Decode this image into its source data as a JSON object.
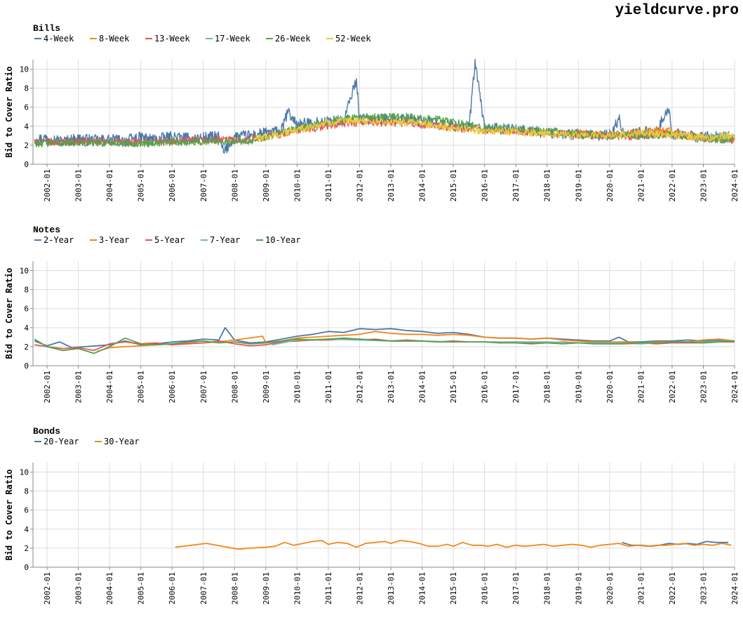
{
  "brand": "yieldcurve.pro",
  "chart_data": [
    {
      "type": "line",
      "title": "Bills",
      "ylabel": "Bid to Cover Ratio",
      "ylim": [
        0,
        11
      ],
      "yticks": [
        0,
        2,
        4,
        6,
        8,
        10
      ],
      "xlim": [
        2001.55,
        2024.0
      ],
      "xticks": [
        "2002-01",
        "2003-01",
        "2004-01",
        "2005-01",
        "2006-01",
        "2007-01",
        "2008-01",
        "2009-01",
        "2010-01",
        "2011-01",
        "2012-01",
        "2013-01",
        "2014-01",
        "2015-01",
        "2016-01",
        "2017-01",
        "2018-01",
        "2019-01",
        "2020-01",
        "2021-01",
        "2022-01",
        "2023-01",
        "2024-01"
      ],
      "grid": true,
      "legend_position": "top-left",
      "series": [
        {
          "name": "4-Week",
          "color": "#4c78a8",
          "start": 2001.6,
          "end": 2024.0,
          "x": [
            2001.6,
            2002.0,
            2002.5,
            2003.0,
            2003.5,
            2004.0,
            2004.5,
            2005.0,
            2005.5,
            2006.0,
            2006.5,
            2007.0,
            2007.5,
            2007.65,
            2008.0,
            2008.5,
            2009.0,
            2009.5,
            2009.7,
            2010.0,
            2010.5,
            2011.0,
            2011.5,
            2011.9,
            2012.0,
            2012.5,
            2013.0,
            2013.5,
            2014.0,
            2014.5,
            2015.0,
            2015.5,
            2015.7,
            2016.0,
            2016.5,
            2017.0,
            2017.5,
            2018.0,
            2018.5,
            2019.0,
            2019.5,
            2020.0,
            2020.3,
            2020.5,
            2021.0,
            2021.5,
            2021.9,
            2022.0,
            2022.5,
            2023.0,
            2023.5,
            2024.0
          ],
          "values": [
            2.6,
            2.8,
            2.4,
            2.7,
            2.5,
            2.6,
            2.5,
            2.8,
            2.6,
            2.9,
            2.7,
            2.8,
            2.9,
            1.2,
            2.9,
            3.0,
            3.3,
            3.5,
            5.5,
            4.2,
            4.3,
            4.5,
            4.6,
            9.0,
            4.7,
            4.8,
            4.6,
            4.8,
            4.6,
            4.2,
            4.0,
            3.8,
            10.7,
            3.8,
            3.7,
            3.6,
            3.5,
            3.3,
            3.2,
            3.1,
            3.0,
            3.1,
            4.7,
            3.1,
            3.3,
            3.5,
            5.8,
            3.2,
            3.0,
            2.8,
            2.9,
            2.8
          ]
        },
        {
          "name": "8-Week",
          "color": "#f58518",
          "start": 2018.75,
          "end": 2024.0,
          "x": [
            2018.75,
            2019.0,
            2019.5,
            2020.0,
            2020.5,
            2021.0,
            2021.5,
            2022.0,
            2022.5,
            2023.0,
            2023.5,
            2024.0
          ],
          "values": [
            3.2,
            3.3,
            3.1,
            3.0,
            3.2,
            3.4,
            3.6,
            3.5,
            3.0,
            2.7,
            2.8,
            2.7
          ]
        },
        {
          "name": "13-Week",
          "color": "#e45756",
          "start": 2001.6,
          "end": 2024.0,
          "x": [
            2001.6,
            2003.0,
            2005.0,
            2007.0,
            2008.5,
            2010.0,
            2011.5,
            2013.0,
            2014.5,
            2016.0,
            2017.5,
            2019.0,
            2020.5,
            2022.0,
            2023.5,
            2024.0
          ],
          "values": [
            2.3,
            2.4,
            2.3,
            2.5,
            2.6,
            3.5,
            4.3,
            4.4,
            4.0,
            3.6,
            3.4,
            3.1,
            2.9,
            3.2,
            2.6,
            2.6
          ]
        },
        {
          "name": "17-Week",
          "color": "#72b7b2",
          "start": 2022.8,
          "end": 2024.0,
          "x": [
            2022.8,
            2023.2,
            2023.6,
            2024.0
          ],
          "values": [
            2.8,
            2.9,
            3.0,
            3.0
          ]
        },
        {
          "name": "26-Week",
          "color": "#54a24b",
          "start": 2001.6,
          "end": 2024.0,
          "x": [
            2001.6,
            2003.0,
            2005.0,
            2007.0,
            2008.5,
            2010.0,
            2011.5,
            2013.0,
            2014.5,
            2016.0,
            2017.5,
            2019.0,
            2020.5,
            2022.0,
            2023.5,
            2024.0
          ],
          "values": [
            2.2,
            2.3,
            2.2,
            2.4,
            2.5,
            3.7,
            4.8,
            5.0,
            4.7,
            3.8,
            3.6,
            3.1,
            3.0,
            3.1,
            2.6,
            2.7
          ]
        },
        {
          "name": "52-Week",
          "color": "#eeca3b",
          "start": 2008.6,
          "end": 2024.0,
          "x": [
            2008.6,
            2009.5,
            2010.0,
            2010.5,
            2011.0,
            2012.0,
            2013.0,
            2014.0,
            2015.0,
            2016.0,
            2017.0,
            2018.0,
            2019.0,
            2020.0,
            2021.0,
            2022.0,
            2023.0,
            2024.0
          ],
          "values": [
            2.6,
            3.2,
            3.6,
            4.0,
            4.4,
            4.6,
            4.4,
            4.3,
            3.8,
            3.5,
            3.4,
            3.2,
            3.1,
            3.0,
            3.3,
            3.1,
            2.8,
            3.0
          ]
        }
      ]
    },
    {
      "type": "line",
      "title": "Notes",
      "ylabel": "Bid to Cover Ratio",
      "ylim": [
        0,
        11
      ],
      "yticks": [
        0,
        2,
        4,
        6,
        8,
        10
      ],
      "xlim": [
        2001.55,
        2024.0
      ],
      "xticks": [
        "2002-01",
        "2003-01",
        "2004-01",
        "2005-01",
        "2006-01",
        "2007-01",
        "2008-01",
        "2009-01",
        "2010-01",
        "2011-01",
        "2012-01",
        "2013-01",
        "2014-01",
        "2015-01",
        "2016-01",
        "2017-01",
        "2018-01",
        "2019-01",
        "2020-01",
        "2021-01",
        "2022-01",
        "2023-01",
        "2024-01"
      ],
      "grid": true,
      "legend_position": "top-left",
      "series": [
        {
          "name": "2-Year",
          "color": "#4c78a8",
          "x": [
            2001.6,
            2002.0,
            2002.4,
            2002.8,
            2003.2,
            2003.6,
            2004.0,
            2004.5,
            2005.0,
            2005.5,
            2006.0,
            2006.5,
            2007.0,
            2007.5,
            2007.7,
            2008.0,
            2008.5,
            2009.0,
            2009.5,
            2010.0,
            2010.5,
            2011.0,
            2011.5,
            2012.0,
            2012.5,
            2013.0,
            2013.5,
            2014.0,
            2014.5,
            2015.0,
            2015.5,
            2016.0,
            2016.5,
            2017.0,
            2017.5,
            2018.0,
            2018.5,
            2019.0,
            2019.5,
            2020.0,
            2020.3,
            2020.6,
            2021.0,
            2021.5,
            2022.0,
            2022.5,
            2023.0,
            2023.5,
            2024.0
          ],
          "values": [
            2.6,
            2.1,
            2.5,
            1.9,
            2.0,
            2.1,
            2.2,
            2.6,
            2.2,
            2.3,
            2.5,
            2.6,
            2.8,
            2.7,
            4.0,
            2.7,
            2.4,
            2.5,
            2.8,
            3.1,
            3.3,
            3.6,
            3.5,
            3.9,
            3.8,
            3.9,
            3.7,
            3.6,
            3.4,
            3.5,
            3.3,
            3.0,
            2.9,
            2.9,
            2.8,
            2.9,
            2.8,
            2.7,
            2.6,
            2.6,
            3.0,
            2.5,
            2.5,
            2.6,
            2.6,
            2.7,
            2.6,
            2.7,
            2.6
          ]
        },
        {
          "name": "3-Year",
          "color": "#f58518",
          "x": [
            2003.6,
            2004.0,
            2004.5,
            2005.0,
            2005.5,
            2006.0,
            2006.5,
            2007.0,
            2007.5,
            2008.0,
            2008.9,
            2009.0,
            2009.5,
            2010.0,
            2010.5,
            2011.0,
            2011.5,
            2012.0,
            2012.5,
            2013.0,
            2013.5,
            2014.0,
            2014.5,
            2015.0,
            2015.5,
            2016.0,
            2016.5,
            2017.0,
            2017.5,
            2018.0,
            2018.5,
            2019.0,
            2019.5,
            2020.0,
            2020.5,
            2021.0,
            2021.5,
            2022.0,
            2022.5,
            2023.0,
            2023.5,
            2024.0
          ],
          "values": [
            1.5,
            1.9,
            2.0,
            2.1,
            2.2,
            2.3,
            2.4,
            2.4,
            2.5,
            2.7,
            3.1,
            2.4,
            2.6,
            2.9,
            3.0,
            3.1,
            3.2,
            3.3,
            3.6,
            3.4,
            3.3,
            3.3,
            3.2,
            3.3,
            3.2,
            3.0,
            2.9,
            2.9,
            2.8,
            2.9,
            2.7,
            2.6,
            2.5,
            2.5,
            2.5,
            2.4,
            2.5,
            2.5,
            2.5,
            2.7,
            2.8,
            2.6
          ]
        },
        {
          "name": "5-Year",
          "color": "#e45756",
          "x": [
            2001.6,
            2002.0,
            2002.5,
            2003.0,
            2003.5,
            2004.0,
            2004.5,
            2005.0,
            2005.5,
            2006.0,
            2006.5,
            2007.0,
            2007.5,
            2008.0,
            2008.5,
            2009.0,
            2009.5,
            2010.0,
            2010.5,
            2011.0,
            2011.5,
            2012.0,
            2012.5,
            2013.0,
            2013.5,
            2014.0,
            2014.5,
            2015.0,
            2015.5,
            2016.0,
            2016.5,
            2017.0,
            2017.5,
            2018.0,
            2018.5,
            2019.0,
            2019.5,
            2020.0,
            2020.5,
            2021.0,
            2021.5,
            2022.0,
            2022.5,
            2023.0,
            2023.5,
            2024.0
          ],
          "values": [
            2.2,
            2.0,
            1.8,
            1.9,
            1.6,
            2.3,
            2.5,
            2.3,
            2.4,
            2.2,
            2.3,
            2.4,
            2.6,
            2.3,
            2.1,
            2.2,
            2.5,
            2.6,
            2.7,
            2.7,
            2.8,
            2.7,
            2.8,
            2.6,
            2.7,
            2.6,
            2.5,
            2.6,
            2.5,
            2.5,
            2.4,
            2.5,
            2.4,
            2.4,
            2.5,
            2.4,
            2.4,
            2.3,
            2.4,
            2.4,
            2.3,
            2.4,
            2.4,
            2.4,
            2.5,
            2.5
          ]
        },
        {
          "name": "7-Year",
          "color": "#72b7b2",
          "x": [
            2009.2,
            2010.0,
            2011.0,
            2012.0,
            2013.0,
            2014.0,
            2015.0,
            2016.0,
            2017.0,
            2018.0,
            2019.0,
            2020.0,
            2021.0,
            2022.0,
            2023.0,
            2024.0
          ],
          "values": [
            2.2,
            2.7,
            2.8,
            2.7,
            2.6,
            2.6,
            2.5,
            2.5,
            2.5,
            2.5,
            2.4,
            2.4,
            2.3,
            2.5,
            2.5,
            2.6
          ]
        },
        {
          "name": "10-Year",
          "color": "#54a24b",
          "x": [
            2001.6,
            2002.0,
            2002.5,
            2003.0,
            2003.5,
            2004.0,
            2004.5,
            2005.0,
            2005.5,
            2006.0,
            2006.5,
            2007.0,
            2007.5,
            2008.0,
            2008.5,
            2009.0,
            2009.5,
            2010.0,
            2010.5,
            2011.0,
            2011.5,
            2012.0,
            2012.5,
            2013.0,
            2013.5,
            2014.0,
            2014.5,
            2015.0,
            2015.5,
            2016.0,
            2016.5,
            2017.0,
            2017.5,
            2018.0,
            2018.5,
            2019.0,
            2019.5,
            2020.0,
            2020.5,
            2021.0,
            2021.5,
            2022.0,
            2022.5,
            2023.0,
            2023.5,
            2024.0
          ],
          "values": [
            2.8,
            2.0,
            1.6,
            1.8,
            1.3,
            2.0,
            2.9,
            2.3,
            2.2,
            2.3,
            2.5,
            2.6,
            2.4,
            2.5,
            2.3,
            2.4,
            2.6,
            2.8,
            2.7,
            2.8,
            2.9,
            2.8,
            2.7,
            2.6,
            2.6,
            2.6,
            2.5,
            2.5,
            2.5,
            2.5,
            2.4,
            2.4,
            2.3,
            2.4,
            2.3,
            2.4,
            2.3,
            2.3,
            2.3,
            2.4,
            2.4,
            2.5,
            2.5,
            2.4,
            2.5,
            2.6
          ]
        }
      ]
    },
    {
      "type": "line",
      "title": "Bonds",
      "ylabel": "Bid to Cover Ratio",
      "ylim": [
        0,
        11
      ],
      "yticks": [
        0,
        2,
        4,
        6,
        8,
        10
      ],
      "xlim": [
        2001.55,
        2024.0
      ],
      "xticks": [
        "2002-01",
        "2003-01",
        "2004-01",
        "2005-01",
        "2006-01",
        "2007-01",
        "2008-01",
        "2009-01",
        "2010-01",
        "2011-01",
        "2012-01",
        "2013-01",
        "2014-01",
        "2015-01",
        "2016-01",
        "2017-01",
        "2018-01",
        "2019-01",
        "2020-01",
        "2021-01",
        "2022-01",
        "2023-01",
        "2024-01"
      ],
      "grid": true,
      "legend_position": "top-left",
      "series": [
        {
          "name": "20-Year",
          "color": "#4c78a8",
          "x": [
            2020.4,
            2020.7,
            2021.0,
            2021.3,
            2021.6,
            2021.9,
            2022.2,
            2022.5,
            2022.8,
            2023.1,
            2023.4,
            2023.8
          ],
          "values": [
            2.6,
            2.3,
            2.3,
            2.2,
            2.3,
            2.5,
            2.4,
            2.5,
            2.4,
            2.7,
            2.6,
            2.6
          ]
        },
        {
          "name": "30-Year",
          "color": "#f58518",
          "x": [
            2006.1,
            2007.1,
            2008.1,
            2008.5,
            2009.0,
            2009.3,
            2009.6,
            2009.9,
            2010.2,
            2010.5,
            2010.8,
            2011.0,
            2011.3,
            2011.6,
            2011.9,
            2012.2,
            2012.5,
            2012.8,
            2013.0,
            2013.3,
            2013.6,
            2013.9,
            2014.2,
            2014.5,
            2014.8,
            2015.0,
            2015.3,
            2015.6,
            2015.9,
            2016.1,
            2016.4,
            2016.7,
            2017.0,
            2017.3,
            2017.6,
            2017.9,
            2018.2,
            2018.5,
            2018.8,
            2019.1,
            2019.4,
            2019.7,
            2020.0,
            2020.3,
            2020.6,
            2020.9,
            2021.2,
            2021.5,
            2021.8,
            2022.1,
            2022.4,
            2022.7,
            2023.0,
            2023.3,
            2023.6,
            2023.9
          ],
          "values": [
            2.1,
            2.5,
            1.9,
            2.0,
            2.1,
            2.2,
            2.6,
            2.3,
            2.5,
            2.7,
            2.8,
            2.4,
            2.6,
            2.5,
            2.1,
            2.5,
            2.6,
            2.7,
            2.5,
            2.8,
            2.7,
            2.5,
            2.2,
            2.2,
            2.4,
            2.2,
            2.6,
            2.3,
            2.3,
            2.2,
            2.4,
            2.1,
            2.3,
            2.2,
            2.3,
            2.4,
            2.2,
            2.3,
            2.4,
            2.3,
            2.1,
            2.3,
            2.4,
            2.5,
            2.2,
            2.3,
            2.2,
            2.3,
            2.3,
            2.4,
            2.5,
            2.3,
            2.4,
            2.3,
            2.5,
            2.3
          ]
        }
      ]
    }
  ]
}
